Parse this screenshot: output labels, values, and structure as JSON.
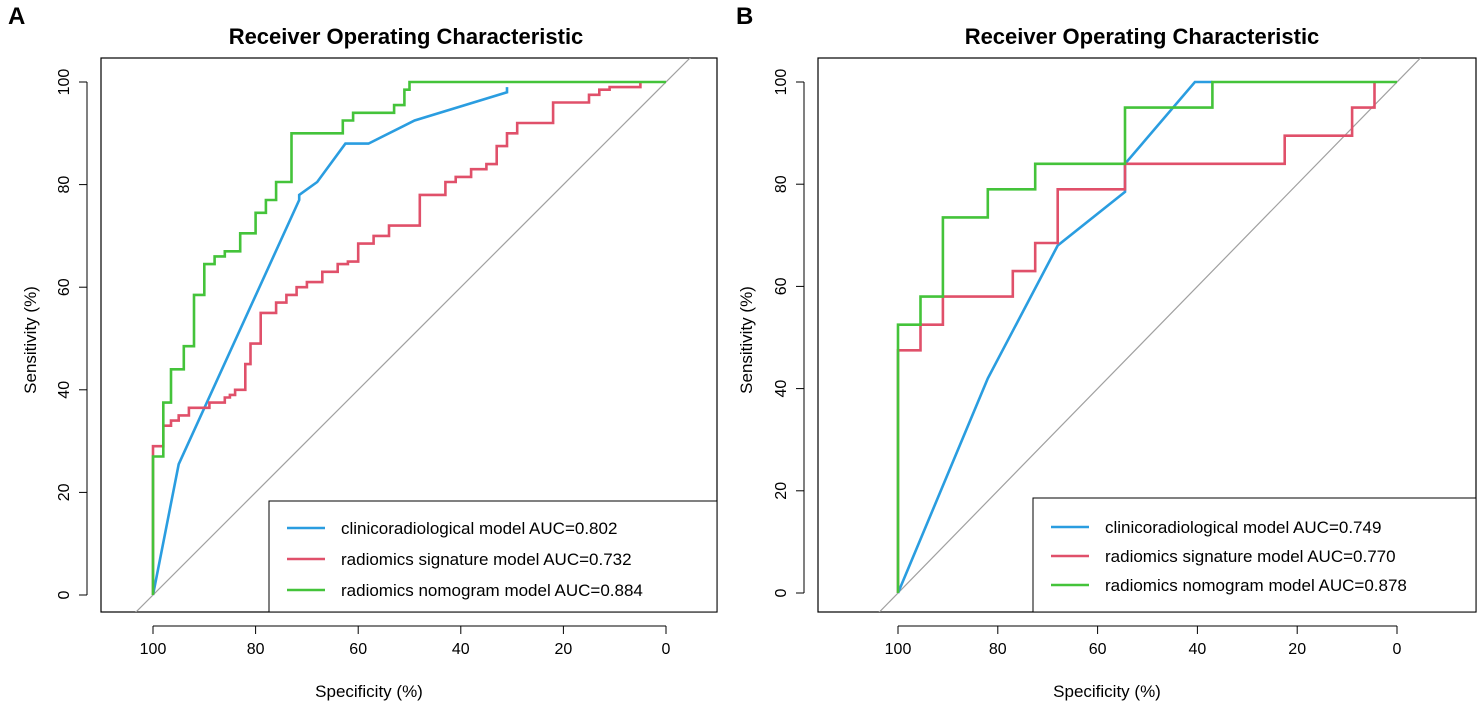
{
  "chart_data": [
    {
      "panel_label": "A",
      "type": "line",
      "title": "Receiver Operating Characteristic",
      "xlabel": "Specificity (%)",
      "ylabel": "Sensitivity (%)",
      "xlim": [
        100,
        0
      ],
      "ylim": [
        0,
        100
      ],
      "x_ticks": [
        100,
        80,
        60,
        40,
        20,
        0
      ],
      "y_ticks": [
        0,
        20,
        40,
        60,
        80,
        100
      ],
      "grid": false,
      "legend_position": "bottom-right",
      "diagonal_color": "#a0a0a0",
      "series": [
        {
          "name": "clinicoradiological model AUC=0.802",
          "color": "#2a9de0",
          "x": [
            100,
            95,
            71.5,
            71.5,
            68,
            62.5,
            58,
            49,
            31,
            31
          ],
          "y": [
            0,
            25.5,
            77,
            78,
            80.5,
            88,
            88,
            92.5,
            98,
            99
          ]
        },
        {
          "name": "radiomics signature model AUC=0.732",
          "color": "#e0506a",
          "x": [
            100,
            100,
            98,
            98,
            96.5,
            96.5,
            95,
            95,
            93,
            93,
            89,
            89,
            86,
            86,
            85,
            85,
            84,
            84,
            82,
            82,
            81,
            81,
            79,
            79,
            76,
            76,
            74,
            74,
            72,
            72,
            70,
            70,
            67,
            67,
            64,
            64,
            62,
            62,
            60,
            60,
            57,
            57,
            54,
            54,
            48,
            48,
            43,
            43,
            41,
            41,
            38,
            38,
            35,
            35,
            33,
            33,
            31,
            31,
            29,
            29,
            22,
            22,
            15,
            15,
            13,
            13,
            11,
            11,
            5,
            5
          ],
          "y": [
            0,
            29,
            29,
            33,
            33,
            34,
            34,
            35,
            35,
            36.5,
            36.5,
            37.5,
            37.5,
            38.5,
            38.5,
            39,
            39,
            40,
            40,
            45,
            45,
            49,
            49,
            55,
            55,
            57,
            57,
            58.5,
            58.5,
            60,
            60,
            61,
            61,
            63,
            63,
            64.5,
            64.5,
            65,
            65,
            68.5,
            68.5,
            70,
            70,
            72,
            72,
            78,
            78,
            80.5,
            80.5,
            81.5,
            81.5,
            83,
            83,
            84,
            84,
            87.5,
            87.5,
            90,
            90,
            92,
            92,
            96,
            96,
            97.5,
            97.5,
            98.5,
            98.5,
            99,
            99,
            100
          ]
        },
        {
          "name": "radiomics nomogram model AUC=0.884",
          "color": "#44c33a",
          "x": [
            100,
            100,
            98,
            98,
            96.5,
            96.5,
            94,
            94,
            92,
            92,
            90,
            90,
            88,
            88,
            86,
            86,
            83,
            83,
            80,
            80,
            78,
            78,
            76,
            76,
            73,
            73,
            63,
            63,
            61,
            61,
            53,
            53,
            51,
            51,
            50,
            50,
            0
          ],
          "y": [
            0,
            27,
            27,
            37.5,
            37.5,
            44,
            44,
            48.5,
            48.5,
            58.5,
            58.5,
            64.5,
            64.5,
            66,
            66,
            67,
            67,
            70.5,
            70.5,
            74.5,
            74.5,
            77,
            77,
            80.5,
            80.5,
            90,
            90,
            92.5,
            92.5,
            94,
            94,
            95.5,
            95.5,
            98.5,
            98.5,
            100,
            100
          ]
        }
      ]
    },
    {
      "panel_label": "B",
      "type": "line",
      "title": "Receiver Operating Characteristic",
      "xlabel": "Specificity (%)",
      "ylabel": "Sensitivity (%)",
      "xlim": [
        100,
        0
      ],
      "ylim": [
        0,
        100
      ],
      "x_ticks": [
        100,
        80,
        60,
        40,
        20,
        0
      ],
      "y_ticks": [
        0,
        20,
        40,
        60,
        80,
        100
      ],
      "grid": false,
      "legend_position": "bottom-right",
      "diagonal_color": "#a0a0a0",
      "series": [
        {
          "name": "clinicoradiological model AUC=0.749",
          "color": "#2a9de0",
          "x": [
            100,
            82,
            68,
            54.5,
            54.5,
            40.5,
            37,
            37
          ],
          "y": [
            0,
            42,
            68,
            78.5,
            84,
            100,
            100,
            100
          ]
        },
        {
          "name": "radiomics signature model AUC=0.770",
          "color": "#e0506a",
          "x": [
            100,
            100,
            95.5,
            95.5,
            91,
            91,
            77,
            77,
            72.5,
            72.5,
            68,
            68,
            54.5,
            54.5,
            22.5,
            22.5,
            9,
            9,
            4.5,
            4.5
          ],
          "y": [
            0,
            47.5,
            47.5,
            52.5,
            52.5,
            58,
            58,
            63,
            63,
            68.5,
            68.5,
            79,
            79,
            84,
            84,
            89.5,
            89.5,
            95,
            95,
            100
          ]
        },
        {
          "name": "radiomics nomogram model AUC=0.878",
          "color": "#44c33a",
          "x": [
            100,
            100,
            95.5,
            95.5,
            91,
            91,
            82,
            82,
            72.5,
            72.5,
            54.5,
            54.5,
            37,
            37,
            0
          ],
          "y": [
            0,
            52.5,
            52.5,
            58,
            58,
            73.5,
            73.5,
            79,
            79,
            84,
            84,
            95,
            95,
            100,
            100
          ]
        }
      ]
    }
  ]
}
